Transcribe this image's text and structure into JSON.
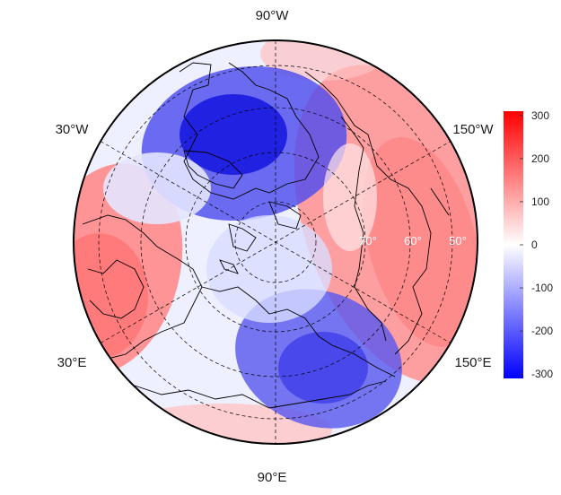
{
  "map": {
    "projection": "polar",
    "longitude_labels": {
      "top": "90°W",
      "upper_left": "30°W",
      "upper_right": "150°W",
      "lower_left": "30°E",
      "lower_right": "150°E",
      "bottom": "90°E"
    },
    "latitude_labels": [
      "70°",
      "60°",
      "50°"
    ]
  },
  "colorbar": {
    "ticks": [
      "300",
      "200",
      "100",
      "0",
      "-100",
      "-200",
      "-300"
    ],
    "min": -310,
    "max": 310,
    "colors": {
      "low": "#0000ff",
      "mid": "#ffffff",
      "high": "#ff0000"
    }
  },
  "field": {
    "anomalies": [
      {
        "name": "canada-greenland-low",
        "value": -300
      },
      {
        "name": "siberia-low",
        "value": -230
      },
      {
        "name": "pacific-high",
        "value": 150
      },
      {
        "name": "europe-high",
        "value": 160
      }
    ]
  }
}
